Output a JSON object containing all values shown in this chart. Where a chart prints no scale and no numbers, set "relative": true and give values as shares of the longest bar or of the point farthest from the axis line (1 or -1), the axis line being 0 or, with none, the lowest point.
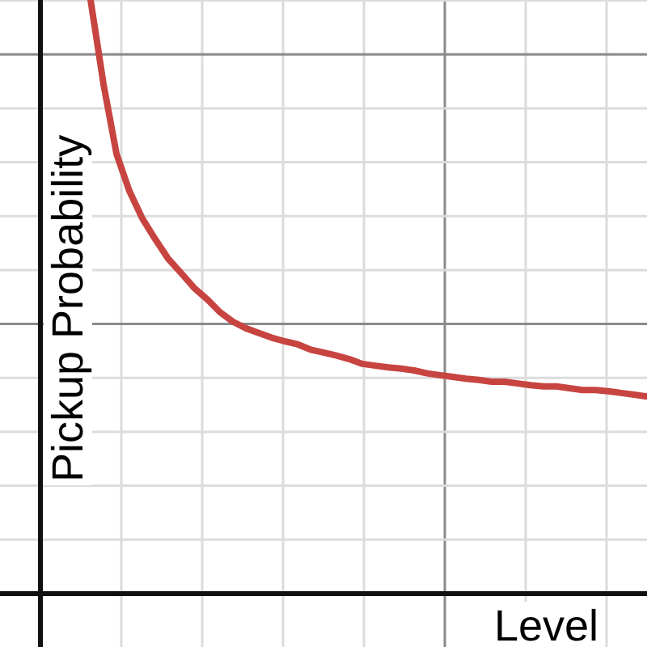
{
  "chart_data": {
    "type": "line",
    "xlabel": "Level",
    "ylabel": "Pickup Probability",
    "relative": true,
    "grid": true,
    "legend": false,
    "marker": "none",
    "line_style": "solid",
    "categories": [
      null,
      null,
      null,
      null,
      null,
      null,
      null,
      null,
      null,
      null,
      null,
      null,
      null,
      null,
      null,
      null,
      null,
      null,
      null,
      null,
      null,
      null,
      null,
      null,
      null,
      null,
      null,
      null,
      null,
      null,
      null,
      null,
      null,
      null,
      null,
      null,
      null,
      null,
      null,
      null,
      null,
      null,
      null,
      null
    ],
    "series": [
      {
        "color": "#c74440",
        "values": [
          1.0,
          0.858,
          0.741,
          0.678,
          0.632,
          0.597,
          0.564,
          0.54,
          0.515,
          0.496,
          0.474,
          0.458,
          0.447,
          0.439,
          0.431,
          0.425,
          0.42,
          0.411,
          0.406,
          0.401,
          0.395,
          0.387,
          0.384,
          0.381,
          0.379,
          0.376,
          0.371,
          0.368,
          0.365,
          0.362,
          0.36,
          0.357,
          0.357,
          0.354,
          0.351,
          0.349,
          0.349,
          0.346,
          0.343,
          0.343,
          0.341,
          0.338,
          0.335,
          0.332
        ]
      }
    ]
  }
}
